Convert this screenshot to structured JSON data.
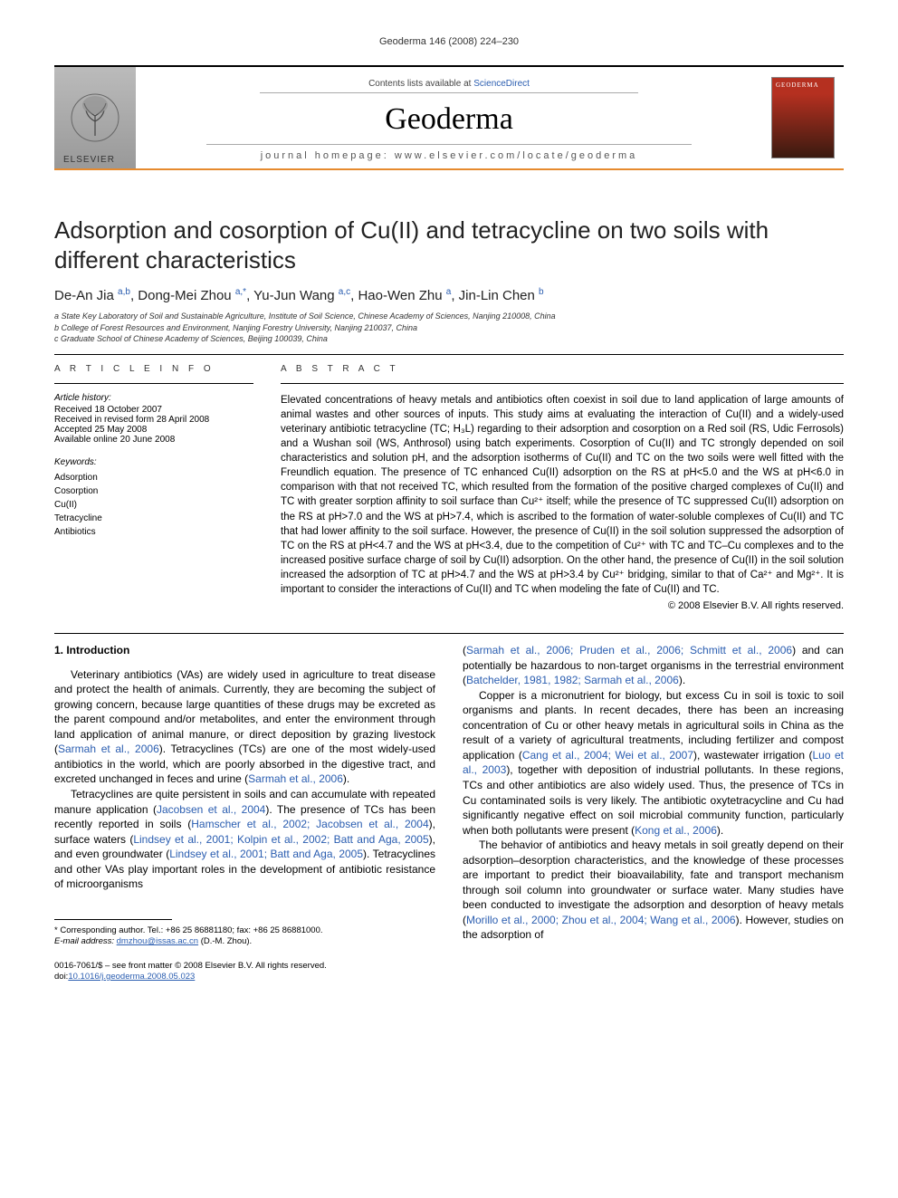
{
  "running_header": "Geoderma 146 (2008) 224–230",
  "masthead": {
    "contents_prefix": "Contents lists available at ",
    "contents_link": "ScienceDirect",
    "journal": "Geoderma",
    "homepage": "journal homepage: www.elsevier.com/locate/geoderma",
    "publisher_label": "ELSEVIER",
    "cover_label": "GEODERMA"
  },
  "title": "Adsorption and cosorption of Cu(II) and tetracycline on two soils with different characteristics",
  "authors_html": "De-An Jia <sup>a,b</sup>, Dong-Mei Zhou <sup>a,*</sup>, Yu-Jun Wang <sup>a,c</sup>, Hao-Wen Zhu <sup>a</sup>, Jin-Lin Chen <sup>b</sup>",
  "affiliations": [
    "a State Key Laboratory of Soil and Sustainable Agriculture, Institute of Soil Science, Chinese Academy of Sciences, Nanjing 210008, China",
    "b College of Forest Resources and Environment, Nanjing Forestry University, Nanjing 210037, China",
    "c Graduate School of Chinese Academy of Sciences, Beijing 100039, China"
  ],
  "article_info": {
    "heading": "A R T I C L E   I N F O",
    "history_label": "Article history:",
    "history": [
      "Received 18 October 2007",
      "Received in revised form 28 April 2008",
      "Accepted 25 May 2008",
      "Available online 20 June 2008"
    ],
    "keywords_label": "Keywords:",
    "keywords": [
      "Adsorption",
      "Cosorption",
      "Cu(II)",
      "Tetracycline",
      "Antibiotics"
    ]
  },
  "abstract": {
    "heading": "A B S T R A C T",
    "body": "Elevated concentrations of heavy metals and antibiotics often coexist in soil due to land application of large amounts of animal wastes and other sources of inputs. This study aims at evaluating the interaction of Cu(II) and a widely-used veterinary antibiotic tetracycline (TC; H₃L) regarding to their adsorption and cosorption on a Red soil (RS, Udic Ferrosols) and a Wushan soil (WS, Anthrosol) using batch experiments. Cosorption of Cu(II) and TC strongly depended on soil characteristics and solution pH, and the adsorption isotherms of Cu(II) and TC on the two soils were well fitted with the Freundlich equation. The presence of TC enhanced Cu(II) adsorption on the RS at pH<5.0 and the WS at pH<6.0 in comparison with that not received TC, which resulted from the formation of the positive charged complexes of Cu(II) and TC with greater sorption affinity to soil surface than Cu²⁺ itself; while the presence of TC suppressed Cu(II) adsorption on the RS at pH>7.0 and the WS at pH>7.4, which is ascribed to the formation of water-soluble complexes of Cu(II) and TC that had lower affinity to the soil surface. However, the presence of Cu(II) in the soil solution suppressed the adsorption of TC on the RS at pH<4.7 and the WS at pH<3.4, due to the competition of Cu²⁺ with TC and TC–Cu complexes and to the increased positive surface charge of soil by Cu(II) adsorption. On the other hand, the presence of Cu(II) in the soil solution increased the adsorption of TC at pH>4.7 and the WS at pH>3.4 by Cu²⁺ bridging, similar to that of Ca²⁺ and Mg²⁺. It is important to consider the interactions of Cu(II) and TC when modeling the fate of Cu(II) and TC.",
    "copyright": "© 2008 Elsevier B.V. All rights reserved."
  },
  "body": {
    "section_heading": "1. Introduction",
    "col1_p1": "Veterinary antibiotics (VAs) are widely used in agriculture to treat disease and protect the health of animals. Currently, they are becoming the subject of growing concern, because large quantities of these drugs may be excreted as the parent compound and/or metabolites, and enter the environment through land application of animal manure, or direct deposition by grazing livestock (<span class=\"reflink\">Sarmah et al., 2006</span>). Tetracyclines (TCs) are one of the most widely-used antibiotics in the world, which are poorly absorbed in the digestive tract, and excreted unchanged in feces and urine (<span class=\"reflink\">Sarmah et al., 2006</span>).",
    "col1_p2": "Tetracyclines are quite persistent in soils and can accumulate with repeated manure application (<span class=\"reflink\">Jacobsen et al., 2004</span>). The presence of TCs has been recently reported in soils (<span class=\"reflink\">Hamscher et al., 2002; Jacobsen et al., 2004</span>), surface waters (<span class=\"reflink\">Lindsey et al., 2001; Kolpin et al., 2002; Batt and Aga, 2005</span>), and even groundwater (<span class=\"reflink\">Lindsey et al., 2001; Batt and Aga, 2005</span>). Tetracyclines and other VAs play important roles in the development of antibiotic resistance of microorganisms",
    "col2_p1_top": "(<span class=\"reflink\">Sarmah et al., 2006; Pruden et al., 2006; Schmitt et al., 2006</span>) and can potentially be hazardous to non-target organisms in the terrestrial environment (<span class=\"reflink\">Batchelder, 1981, 1982; Sarmah et al., 2006</span>).",
    "col2_p2": "Copper is a micronutrient for biology, but excess Cu in soil is toxic to soil organisms and plants. In recent decades, there has been an increasing concentration of Cu or other heavy metals in agricultural soils in China as the result of a variety of agricultural treatments, including fertilizer and compost application (<span class=\"reflink\">Cang et al., 2004; Wei et al., 2007</span>), wastewater irrigation (<span class=\"reflink\">Luo et al., 2003</span>), together with deposition of industrial pollutants. In these regions, TCs and other antibiotics are also widely used. Thus, the presence of TCs in Cu contaminated soils is very likely. The antibiotic oxytetracycline and Cu had significantly negative effect on soil microbial community function, particularly when both pollutants were present (<span class=\"reflink\">Kong et al., 2006</span>).",
    "col2_p3": "The behavior of antibiotics and heavy metals in soil greatly depend on their adsorption–desorption characteristics, and the knowledge of these processes are important to predict their bioavailability, fate and transport mechanism through soil column into groundwater or surface water. Many studies have been conducted to investigate the adsorption and desorption of heavy metals (<span class=\"reflink\">Morillo et al., 2000; Zhou et al., 2004; Wang et al., 2006</span>). However, studies on the adsorption of"
  },
  "footnotes": {
    "corr": "* Corresponding author. Tel.: +86 25 86881180; fax: +86 25 86881000.",
    "email_label": "E-mail address:",
    "email": "dmzhou@issas.ac.cn",
    "email_suffix": "(D.-M. Zhou)."
  },
  "copy_block": {
    "line1": "0016-7061/$ – see front matter © 2008 Elsevier B.V. All rights reserved.",
    "doi_label": "doi:",
    "doi": "10.1016/j.geoderma.2008.05.023"
  },
  "colors": {
    "link": "#2a5db0",
    "orange_rule": "#e68a2e",
    "cover_top": "#b53020",
    "cover_bottom": "#3a1a10"
  }
}
